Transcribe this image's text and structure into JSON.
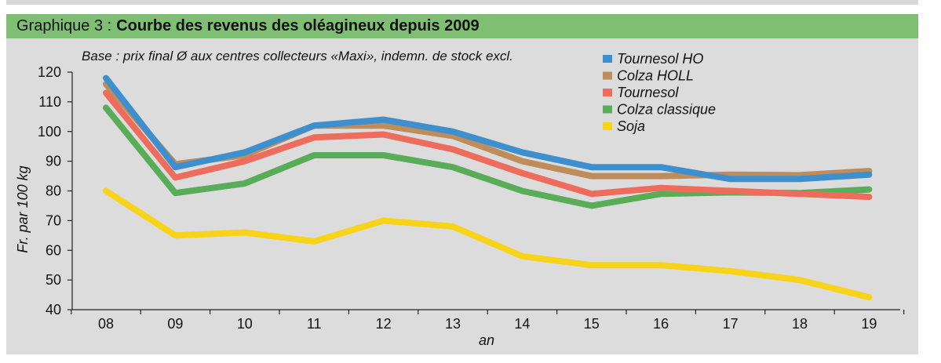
{
  "header": {
    "label": "Graphique 3 :",
    "title": "Courbe des revenus des oléagineux depuis 2009"
  },
  "chart_data": {
    "type": "line",
    "title": "Courbe des revenus des oléagineux depuis 2009",
    "subtitle": "Base : prix final Ø aux centres collecteurs «Maxi», indemn. de stock excl.",
    "xlabel": "an",
    "ylabel": "Fr. par 100 kg",
    "ylim": [
      40,
      120
    ],
    "yticks": [
      "40",
      "50",
      "60",
      "70",
      "80",
      "90",
      "100",
      "110",
      "120"
    ],
    "categories": [
      "08",
      "09",
      "10",
      "11",
      "12",
      "13",
      "14",
      "15",
      "16",
      "17",
      "18",
      "19"
    ],
    "legend_position": "top-right",
    "grid": false,
    "series": [
      {
        "name": "Tournesol HO",
        "color": "#3d8fce",
        "values": [
          118,
          88,
          93,
          102,
          104,
          100,
          93,
          88,
          88,
          84,
          84,
          85.5
        ]
      },
      {
        "name": "Colza HOLL",
        "color": "#bf8c5c",
        "values": [
          116,
          89,
          92,
          102,
          102,
          98.5,
          90,
          85,
          85,
          85.5,
          85.3,
          86.7
        ]
      },
      {
        "name": "Tournesol",
        "color": "#ee6c5c",
        "values": [
          113,
          84.5,
          90,
          98,
          99,
          94,
          86,
          79,
          81,
          80,
          79,
          78
        ]
      },
      {
        "name": "Colza classique",
        "color": "#5aad58",
        "values": [
          108,
          79.3,
          82.5,
          92,
          92,
          88,
          80,
          75,
          79,
          79.5,
          79.3,
          80.5
        ]
      },
      {
        "name": "Soja",
        "color": "#f7d31a",
        "values": [
          80,
          65,
          66,
          63,
          70,
          68,
          58,
          55,
          55,
          53,
          50,
          44.2
        ]
      }
    ]
  }
}
